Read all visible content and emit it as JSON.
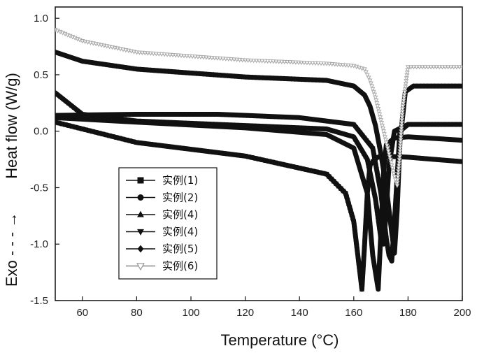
{
  "chart_data": {
    "type": "line",
    "xlabel": "Temperature (°C)",
    "ylabel": "Heat flow (W/g)",
    "exo_label": "Exo - - - →",
    "xlim": [
      50,
      200
    ],
    "ylim": [
      -1.5,
      1.1
    ],
    "xticks": [
      "60",
      "80",
      "100",
      "120",
      "140",
      "160",
      "180",
      "200"
    ],
    "yticks": [
      "1.0",
      "0.5",
      "0.0",
      "-0.5",
      "-1.0",
      "-1.5"
    ],
    "grid": false,
    "legend_position": "bottom-left",
    "series": [
      {
        "name": "实例(1)",
        "marker": "square",
        "color": "#111111",
        "x": [
          50,
          80,
          120,
          150,
          157,
          160,
          162,
          163,
          164,
          165,
          166,
          168,
          170,
          180,
          200
        ],
        "y": [
          0.08,
          -0.1,
          -0.22,
          -0.38,
          -0.55,
          -0.8,
          -1.2,
          -1.4,
          -1.0,
          -0.55,
          -0.3,
          -0.24,
          -0.22,
          -0.23,
          -0.27
        ]
      },
      {
        "name": "实例(2)",
        "marker": "circle",
        "color": "#111111",
        "x": [
          50,
          80,
          120,
          150,
          160,
          165,
          167,
          169,
          170,
          171,
          172,
          175,
          180,
          200
        ],
        "y": [
          0.12,
          0.08,
          0.03,
          -0.03,
          -0.15,
          -0.55,
          -1.1,
          -1.4,
          -0.9,
          -0.35,
          -0.12,
          -0.06,
          -0.05,
          -0.08
        ]
      },
      {
        "name": "实例(4)",
        "marker": "triangle-up",
        "color": "#111111",
        "x": [
          50,
          60,
          80,
          120,
          150,
          160,
          165,
          168,
          170,
          171,
          172,
          173,
          175,
          180,
          200
        ],
        "y": [
          0.34,
          0.15,
          0.09,
          0.05,
          0.02,
          -0.05,
          -0.25,
          -0.6,
          -0.95,
          -1.0,
          -0.7,
          -0.3,
          0.0,
          0.06,
          0.06
        ]
      },
      {
        "name": "实例(4)",
        "marker": "triangle-down",
        "color": "#111111",
        "x": [
          50,
          80,
          110,
          140,
          160,
          167,
          170,
          172,
          173,
          174,
          175,
          177,
          180,
          200
        ],
        "y": [
          0.14,
          0.15,
          0.15,
          0.12,
          0.06,
          -0.15,
          -0.55,
          -0.95,
          -1.1,
          -1.15,
          -0.8,
          0.0,
          0.06,
          0.06
        ]
      },
      {
        "name": "实例(5)",
        "marker": "diamond",
        "color": "#111111",
        "x": [
          50,
          60,
          80,
          120,
          150,
          160,
          164,
          166,
          168,
          170,
          172,
          174,
          175,
          176,
          177,
          179,
          182,
          200
        ],
        "y": [
          0.7,
          0.62,
          0.55,
          0.48,
          0.45,
          0.4,
          0.32,
          0.22,
          0.05,
          -0.2,
          -0.5,
          -0.9,
          -1.08,
          -0.7,
          -0.1,
          0.35,
          0.4,
          0.4
        ]
      },
      {
        "name": "实例(6)",
        "marker": "triangle-down-open",
        "color": "#aaaaaa",
        "x": [
          50,
          60,
          80,
          120,
          150,
          160,
          164,
          166,
          168,
          170,
          172,
          174,
          175,
          176,
          177,
          178,
          180,
          200
        ],
        "y": [
          0.9,
          0.8,
          0.7,
          0.63,
          0.6,
          0.58,
          0.55,
          0.45,
          0.3,
          0.1,
          -0.1,
          -0.3,
          -0.4,
          -0.48,
          -0.2,
          0.2,
          0.57,
          0.57
        ]
      }
    ]
  }
}
